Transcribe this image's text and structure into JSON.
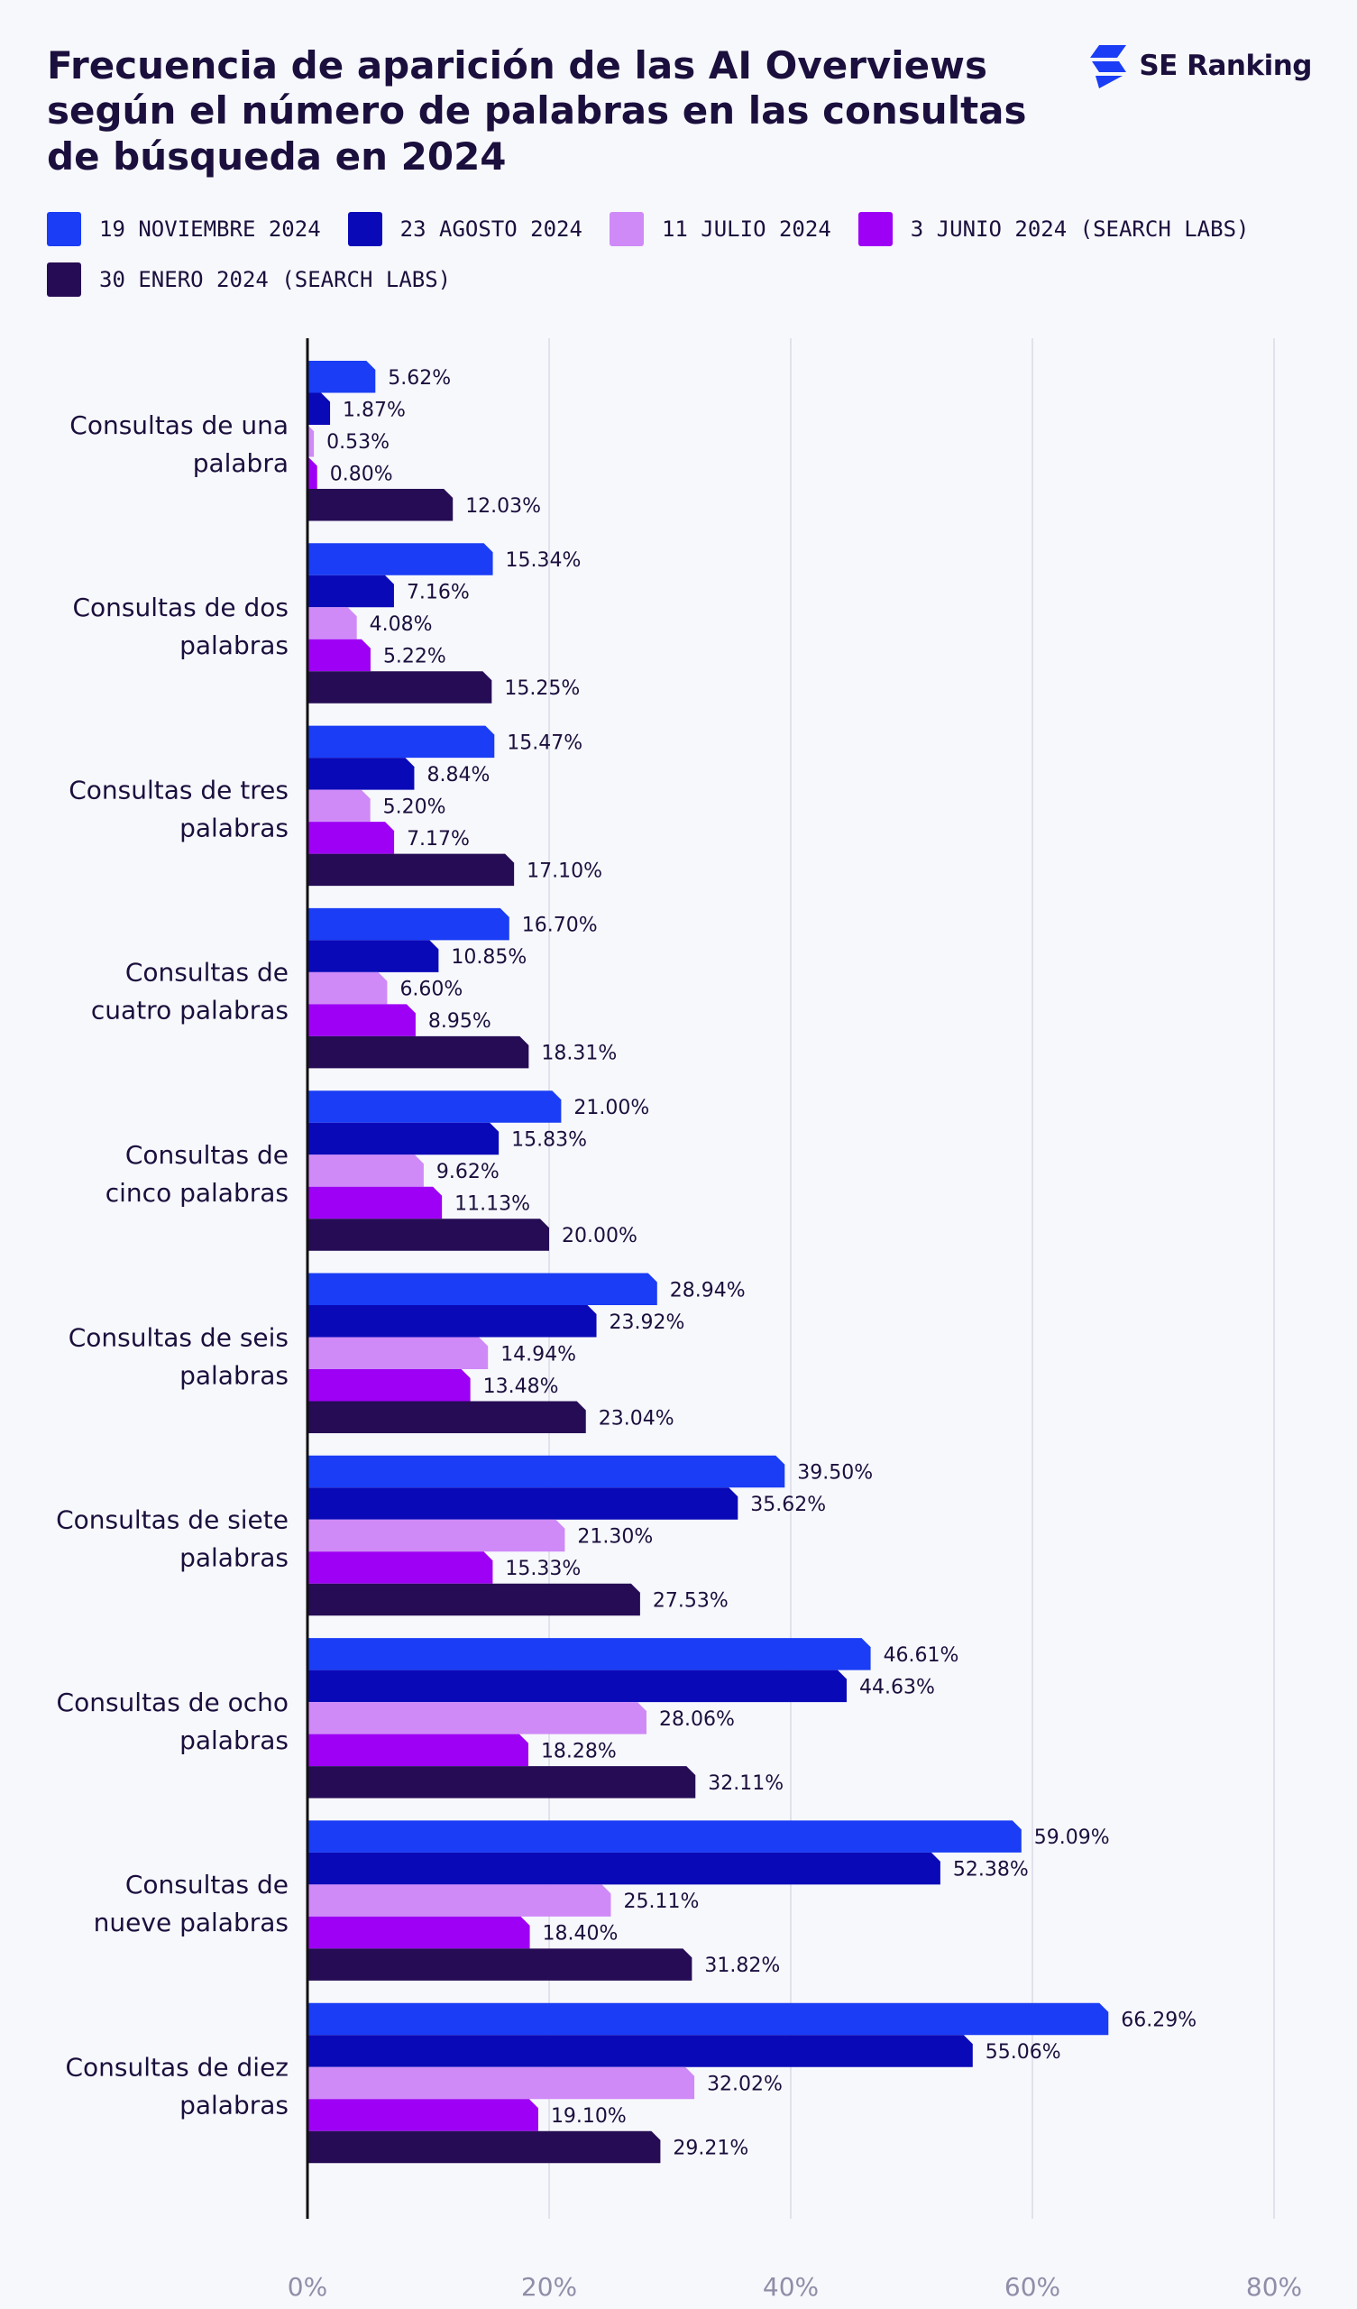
{
  "title": "Frecuencia de aparición de las AI Overviews según el número de palabras en las consultas de búsqueda en 2024",
  "brand": {
    "name": "SE Ranking",
    "color": "#1a3df5"
  },
  "legend": [
    {
      "label": "19 NOVIEMBRE 2024",
      "color": "#1a3df5"
    },
    {
      "label": "23 AGOSTO 2024",
      "color": "#0a09b8"
    },
    {
      "label": "11 JULIO 2024",
      "color": "#cf8af7"
    },
    {
      "label": "3 JUNIO 2024 (SEARCH LABS)",
      "color": "#9e00f5"
    },
    {
      "label": "30 ENERO 2024 (SEARCH LABS)",
      "color": "#260c55"
    }
  ],
  "chart_data": {
    "type": "bar",
    "orientation": "horizontal",
    "categories": [
      [
        "Consultas de una",
        "palabra"
      ],
      [
        "Consultas de dos",
        "palabras"
      ],
      [
        "Consultas de tres",
        "palabras"
      ],
      [
        "Consultas de",
        "cuatro palabras"
      ],
      [
        "Consultas de",
        "cinco palabras"
      ],
      [
        "Consultas de seis",
        "palabras"
      ],
      [
        "Consultas de siete",
        "palabras"
      ],
      [
        "Consultas de ocho",
        "palabras"
      ],
      [
        "Consultas de",
        "nueve palabras"
      ],
      [
        "Consultas de diez",
        "palabras"
      ]
    ],
    "series": [
      {
        "name": "19 NOVIEMBRE 2024",
        "color": "#1a3df5",
        "values": [
          5.62,
          15.34,
          15.47,
          16.7,
          21.0,
          28.94,
          39.5,
          46.61,
          59.09,
          66.29
        ]
      },
      {
        "name": "23 AGOSTO 2024",
        "color": "#0a09b8",
        "values": [
          1.87,
          7.16,
          8.84,
          10.85,
          15.83,
          23.92,
          35.62,
          44.63,
          52.38,
          55.06
        ]
      },
      {
        "name": "11 JULIO 2024",
        "color": "#cf8af7",
        "values": [
          0.53,
          4.08,
          5.2,
          6.6,
          9.62,
          14.94,
          21.3,
          28.06,
          25.11,
          32.02
        ]
      },
      {
        "name": "3 JUNIO 2024 (SEARCH LABS)",
        "color": "#9e00f5",
        "values": [
          0.8,
          5.22,
          7.17,
          8.95,
          11.13,
          13.48,
          15.33,
          18.28,
          18.4,
          19.1
        ]
      },
      {
        "name": "30 ENERO 2024 (SEARCH LABS)",
        "color": "#260c55",
        "values": [
          12.03,
          15.25,
          17.1,
          18.31,
          20.0,
          23.04,
          27.53,
          32.11,
          31.82,
          29.21
        ]
      }
    ],
    "value_labels": [
      [
        "5.62%",
        "1.87%",
        "0.53%",
        "0.80%",
        "12.03%"
      ],
      [
        "15.34%",
        "7.16%",
        "4.08%",
        "5.22%",
        "15.25%"
      ],
      [
        "15.47%",
        "8.84%",
        "5.20%",
        "7.17%",
        "17.10%"
      ],
      [
        "16.70%",
        "10.85%",
        "6.60%",
        "8.95%",
        "18.31%"
      ],
      [
        "21.00%",
        "15.83%",
        "9.62%",
        "11.13%",
        "20.00%"
      ],
      [
        "28.94%",
        "23.92%",
        "14.94%",
        "13.48%",
        "23.04%"
      ],
      [
        "39.50%",
        "35.62%",
        "21.30%",
        "15.33%",
        "27.53%"
      ],
      [
        "46.61%",
        "44.63%",
        "28.06%",
        "18.28%",
        "32.11%"
      ],
      [
        "59.09%",
        "52.38%",
        "25.11%",
        "18.40%",
        "31.82%"
      ],
      [
        "66.29%",
        "55.06%",
        "32.02%",
        "19.10%",
        "29.21%"
      ]
    ],
    "xlim": [
      0,
      80
    ],
    "xticks": [
      "0%",
      "20%",
      "40%",
      "60%",
      "80%"
    ],
    "grid": true,
    "legend_position": "top"
  }
}
